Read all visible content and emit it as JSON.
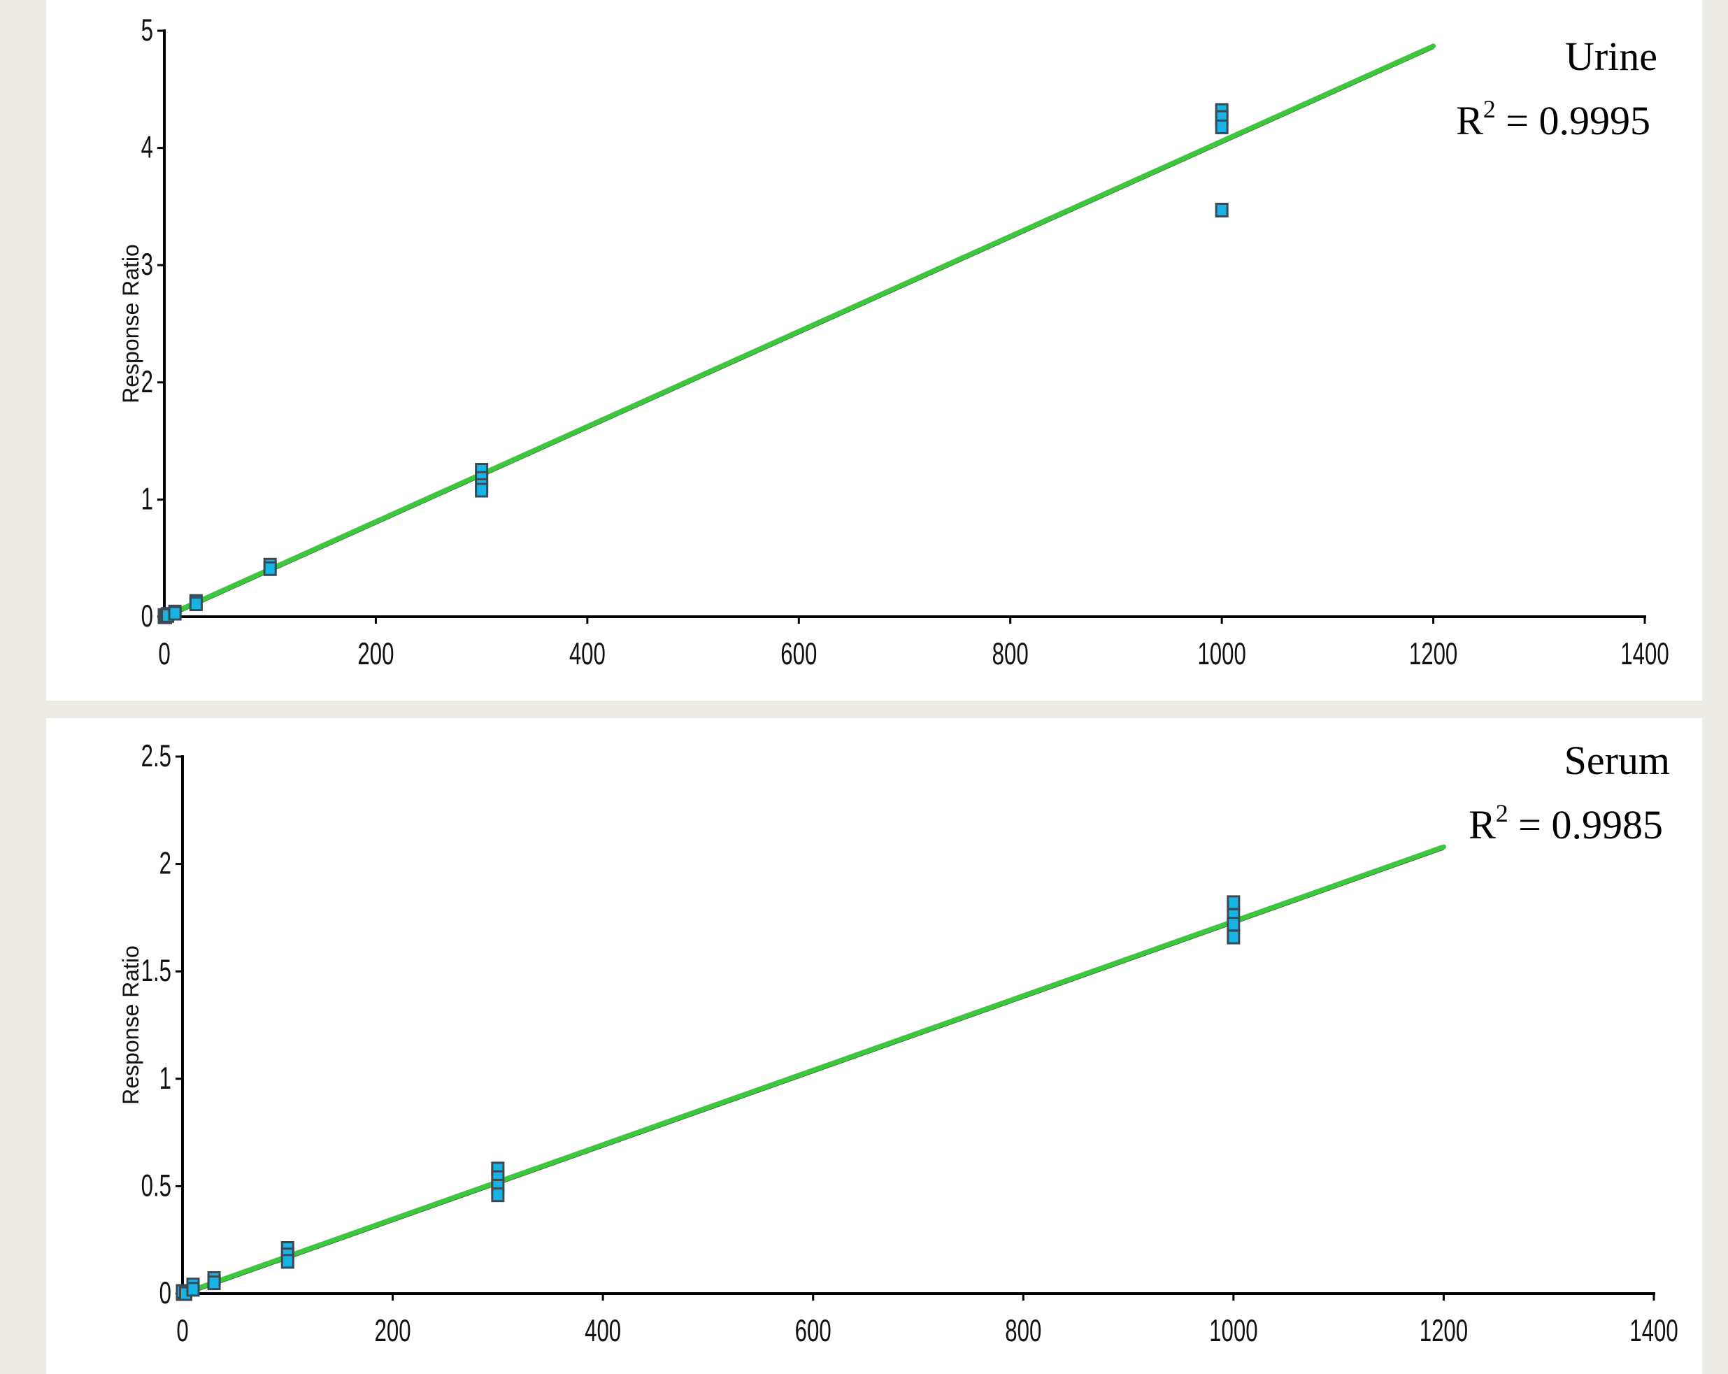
{
  "colors": {
    "background": "#edebe6",
    "panel": "#ffffff",
    "axis": "#000000",
    "fit_line": "#3cc83c",
    "marker_fill": "#19b4e6",
    "marker_edge": "#3a4a55"
  },
  "chart_data": [
    {
      "type": "scatter",
      "title": "",
      "annotation": {
        "name": "Urine",
        "r2_label": "R",
        "r2_sup": "2",
        "r2_value": " = 0.9995"
      },
      "ylabel": "Response Ratio",
      "xlabel": "",
      "xlim": [
        0,
        1400
      ],
      "ylim": [
        0,
        5
      ],
      "xticks": [
        "0",
        "200",
        "400",
        "600",
        "800",
        "1000",
        "1200",
        "1400"
      ],
      "xtick_values": [
        0,
        200,
        400,
        600,
        800,
        1000,
        1200,
        1400
      ],
      "yticks": [
        "0",
        "1",
        "2",
        "3",
        "4",
        "5"
      ],
      "ytick_values": [
        0,
        1,
        2,
        3,
        4,
        5
      ],
      "grid": false,
      "series": [
        {
          "kind": "points",
          "x": [
            0,
            0,
            1,
            3,
            3,
            10,
            10,
            30,
            30,
            100,
            100,
            300,
            300,
            300,
            300,
            1000,
            1000,
            1000,
            1000
          ],
          "y": [
            0.0,
            0.01,
            0.0,
            0.02,
            0.01,
            0.04,
            0.03,
            0.13,
            0.11,
            0.44,
            0.41,
            1.25,
            1.18,
            1.12,
            1.08,
            4.32,
            4.26,
            4.18,
            3.47
          ]
        },
        {
          "kind": "fit",
          "x": [
            0,
            1200
          ],
          "y": [
            0.0,
            4.87
          ]
        }
      ]
    },
    {
      "type": "scatter",
      "title": "",
      "annotation": {
        "name": "Serum",
        "r2_label": "R",
        "r2_sup": "2",
        "r2_value": " = 0.9985"
      },
      "ylabel": "Response Ratio",
      "xlabel": "",
      "xlim": [
        0,
        1400
      ],
      "ylim": [
        0,
        2.5
      ],
      "xticks": [
        "0",
        "200",
        "400",
        "600",
        "800",
        "1000",
        "1200",
        "1400"
      ],
      "xtick_values": [
        0,
        200,
        400,
        600,
        800,
        1000,
        1200,
        1400
      ],
      "yticks": [
        "0",
        "0.5",
        "1",
        "1.5",
        "2",
        "2.5"
      ],
      "ytick_values": [
        0,
        0.5,
        1,
        1.5,
        2,
        2.5
      ],
      "grid": false,
      "series": [
        {
          "kind": "points",
          "x": [
            0,
            0,
            3,
            10,
            10,
            30,
            30,
            100,
            100,
            100,
            300,
            300,
            300,
            300,
            1000,
            1000,
            1000,
            1000
          ],
          "y": [
            0.0,
            0.01,
            0.0,
            0.04,
            0.02,
            0.07,
            0.05,
            0.21,
            0.18,
            0.15,
            0.58,
            0.54,
            0.5,
            0.46,
            1.82,
            1.76,
            1.72,
            1.66
          ]
        },
        {
          "kind": "fit",
          "x": [
            0,
            1200
          ],
          "y": [
            0.0,
            2.08
          ]
        }
      ]
    }
  ]
}
